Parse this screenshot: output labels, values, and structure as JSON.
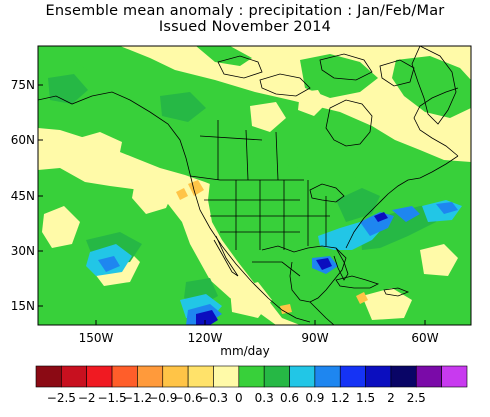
{
  "title": {
    "line1": "Ensemble mean anomaly : precipitation : Jan/Feb/Mar",
    "line2": "Issued November 2014"
  },
  "map": {
    "lon_range": [
      -172,
      -50
    ],
    "lat_range": [
      9,
      87
    ],
    "y_ticks": [
      "75N",
      "60N",
      "45N",
      "30N",
      "15N"
    ],
    "x_ticks": [
      "150W",
      "120W",
      "90W",
      "60W"
    ]
  },
  "units": "mm/day",
  "colorbar": {
    "labels": [
      "−2.5",
      "−2",
      "−1.5",
      "−1.2",
      "−0.9",
      "−0.6",
      "−0.3",
      "0",
      "0.3",
      "0.6",
      "0.9",
      "1.2",
      "1.5",
      "2",
      "2.5"
    ],
    "colors": [
      "#8b0a14",
      "#c8101f",
      "#f01a22",
      "#ff5e2a",
      "#ff9a3b",
      "#ffc447",
      "#ffe26a",
      "#fffaa8",
      "#38d03a",
      "#26b845",
      "#22c6e6",
      "#1e86f0",
      "#1533f5",
      "#0b0ebf",
      "#090566",
      "#7a0aa8",
      "#c83aef"
    ]
  }
}
